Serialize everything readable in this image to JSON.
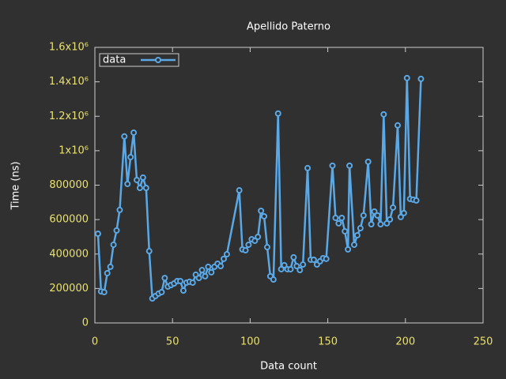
{
  "chart_data": {
    "type": "line",
    "title": "Apellido Paterno",
    "xlabel": "Data count",
    "ylabel": "Time (ns)",
    "x": [
      2,
      4,
      6,
      8,
      10,
      12,
      14,
      16,
      19,
      21,
      23,
      25,
      27,
      29,
      31,
      33,
      35,
      37,
      39,
      41,
      43,
      45,
      47,
      49,
      51,
      53,
      55,
      57,
      59,
      61,
      63,
      65,
      67,
      69,
      71,
      73,
      75,
      77,
      79,
      81,
      83,
      85,
      93,
      95,
      97,
      99,
      101,
      103,
      105,
      107,
      109,
      111,
      113,
      115,
      118,
      120,
      122,
      124,
      126,
      128,
      130,
      132,
      134,
      137,
      139,
      141,
      143,
      145,
      147,
      149,
      153,
      155,
      157,
      159,
      161,
      163,
      164,
      167,
      169,
      171,
      173,
      176,
      178,
      180,
      182,
      184,
      186,
      188,
      190,
      192,
      195,
      197,
      199,
      201,
      203,
      205,
      207,
      210
    ],
    "series": [
      {
        "name": "data",
        "color": "#5aa8e6",
        "values": [
          518000,
          183000,
          179000,
          289000,
          326000,
          454000,
          537000,
          656000,
          1083000,
          807000,
          963000,
          1105000,
          830000,
          784000,
          844000,
          784000,
          417000,
          142000,
          156000,
          170000,
          179000,
          261000,
          211000,
          220000,
          229000,
          243000,
          243000,
          188000,
          234000,
          239000,
          234000,
          280000,
          261000,
          307000,
          271000,
          326000,
          294000,
          326000,
          344000,
          330000,
          372000,
          399000,
          770000,
          427000,
          422000,
          454000,
          486000,
          477000,
          500000,
          651000,
          619000,
          440000,
          271000,
          252000,
          1216000,
          312000,
          335000,
          312000,
          312000,
          381000,
          330000,
          307000,
          339000,
          899000,
          367000,
          367000,
          339000,
          358000,
          376000,
          372000,
          913000,
          610000,
          578000,
          610000,
          532000,
          427000,
          913000,
          454000,
          509000,
          550000,
          624000,
          936000,
          573000,
          647000,
          624000,
          573000,
          1211000,
          578000,
          601000,
          670000,
          1147000,
          615000,
          638000,
          1422000,
          720000,
          716000,
          711000,
          1417000
        ]
      }
    ],
    "xlim": [
      0,
      250
    ],
    "xticks": [
      0,
      50,
      100,
      150,
      200,
      250
    ],
    "ylim": [
      0,
      1600000
    ],
    "yticks": [
      0,
      200000,
      400000,
      600000,
      800000,
      {
        "value": 1000000,
        "label": "1x10⁶"
      },
      {
        "value": 1200000,
        "label": "1.2x10⁶"
      },
      {
        "value": 1400000,
        "label": "1.4x10⁶"
      },
      {
        "value": 1600000,
        "label": "1.6x10⁶"
      }
    ],
    "legend": "top left"
  }
}
